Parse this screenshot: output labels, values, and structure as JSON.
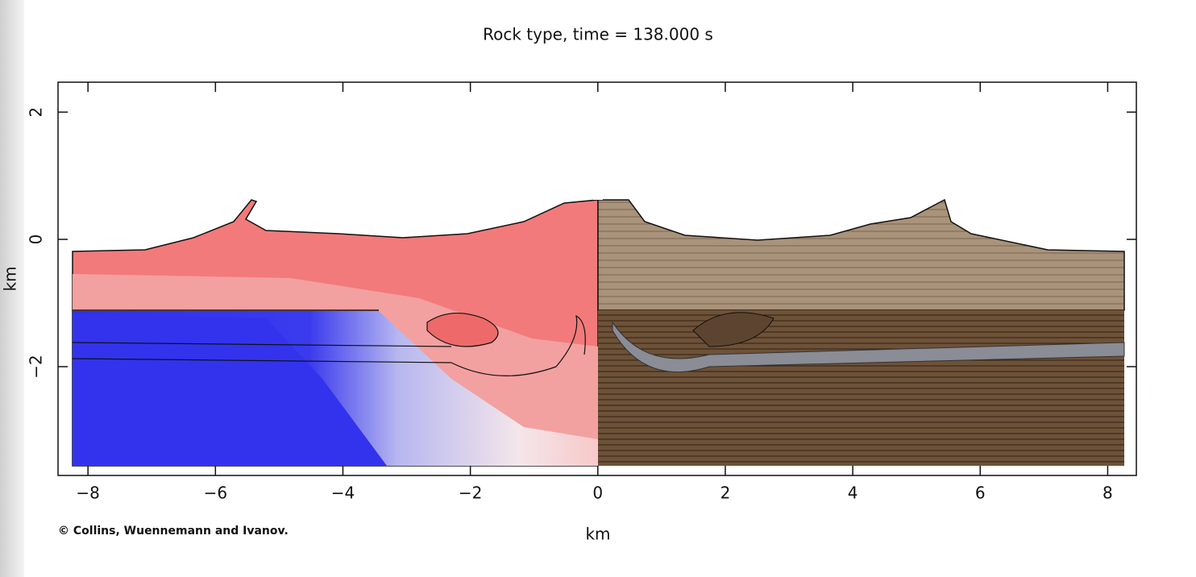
{
  "chart_data": {
    "type": "image",
    "title": "Rock type, time = 138.000 s",
    "x_label": "km",
    "y_label": "km",
    "credit": "© Collins, Wuennemann and Ivanov.",
    "xlim": [
      -8.47,
      8.45
    ],
    "ylim": [
      -3.71,
      2.47
    ],
    "xticks": [
      {
        "value": -8,
        "label": "−8"
      },
      {
        "value": -6,
        "label": "−6"
      },
      {
        "value": -4,
        "label": "−4"
      },
      {
        "value": -2,
        "label": "−2"
      },
      0,
      2,
      4,
      6,
      8
    ],
    "yticks": [
      {
        "value": -2,
        "label": "−2"
      },
      0,
      2
    ]
  }
}
